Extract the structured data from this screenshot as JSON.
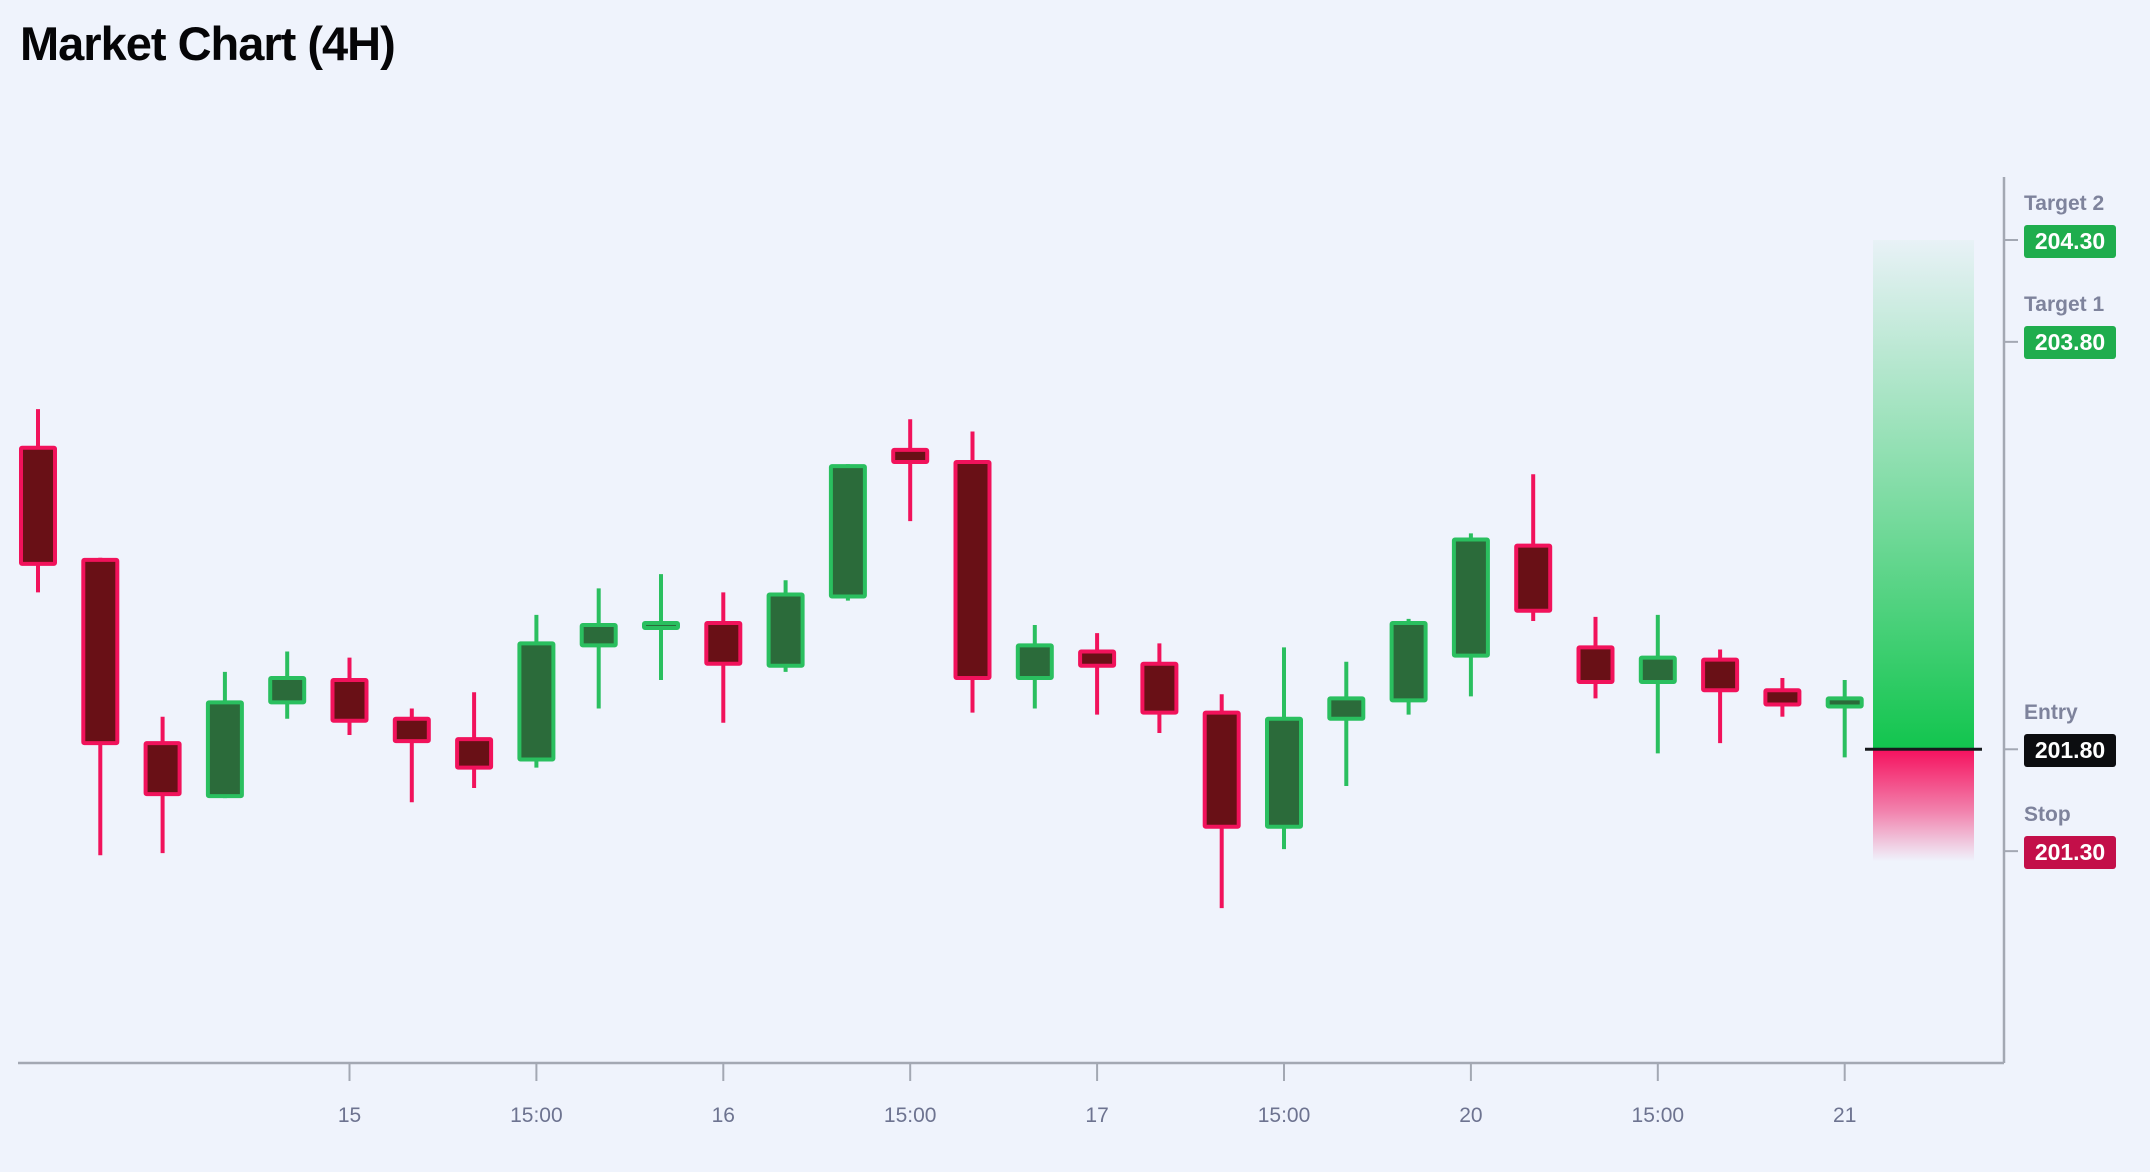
{
  "page": {
    "title": "Market Chart (4H)",
    "background": "#eff3fc"
  },
  "chart_data": {
    "type": "candlestick",
    "title": "Market Chart (4H)",
    "timeframe": "4H",
    "grid": false,
    "ylim": [
      200.26,
      204.84
    ],
    "x_tick_labels": [
      "15",
      "15:00",
      "16",
      "15:00",
      "17",
      "15:00",
      "20",
      "15:00",
      "21"
    ],
    "x_tick_candle_indexes": [
      5,
      8,
      11,
      14,
      17,
      20,
      23,
      26,
      29
    ],
    "candles_ohlc": [
      [
        203.28,
        203.47,
        202.57,
        202.71
      ],
      [
        202.73,
        202.74,
        201.28,
        201.83
      ],
      [
        201.83,
        201.96,
        201.29,
        201.58
      ],
      [
        201.57,
        202.18,
        201.56,
        202.03
      ],
      [
        202.03,
        202.28,
        201.95,
        202.15
      ],
      [
        202.14,
        202.25,
        201.87,
        201.94
      ],
      [
        201.95,
        202.0,
        201.54,
        201.84
      ],
      [
        201.85,
        202.08,
        201.61,
        201.71
      ],
      [
        201.75,
        202.46,
        201.71,
        202.32
      ],
      [
        202.31,
        202.59,
        202.0,
        202.41
      ],
      [
        202.4,
        202.66,
        202.14,
        202.42
      ],
      [
        202.42,
        202.57,
        201.93,
        202.22
      ],
      [
        202.21,
        202.63,
        202.18,
        202.56
      ],
      [
        202.55,
        203.2,
        202.53,
        203.19
      ],
      [
        203.27,
        203.42,
        202.92,
        203.21
      ],
      [
        203.21,
        203.36,
        201.98,
        202.15
      ],
      [
        202.15,
        202.41,
        202.0,
        202.31
      ],
      [
        202.28,
        202.37,
        201.97,
        202.21
      ],
      [
        202.22,
        202.32,
        201.88,
        201.98
      ],
      [
        201.98,
        202.07,
        201.02,
        201.42
      ],
      [
        201.42,
        202.3,
        201.31,
        201.95
      ],
      [
        201.95,
        202.23,
        201.62,
        202.05
      ],
      [
        202.04,
        202.44,
        201.97,
        202.42
      ],
      [
        202.26,
        202.86,
        202.06,
        202.83
      ],
      [
        202.8,
        203.15,
        202.43,
        202.48
      ],
      [
        202.3,
        202.45,
        202.05,
        202.13
      ],
      [
        202.13,
        202.46,
        201.78,
        202.25
      ],
      [
        202.24,
        202.29,
        201.83,
        202.09
      ],
      [
        202.09,
        202.15,
        201.96,
        202.02
      ],
      [
        202.01,
        202.14,
        201.76,
        202.05
      ]
    ],
    "levels": [
      {
        "id": "target2",
        "label": "Target 2",
        "price": 204.3,
        "price_text": "204.30",
        "badge_color": "#1fad4d"
      },
      {
        "id": "target1",
        "label": "Target 1",
        "price": 203.8,
        "price_text": "203.80",
        "badge_color": "#1fad4d"
      },
      {
        "id": "entry",
        "label": "Entry",
        "price": 201.8,
        "price_text": "201.80",
        "badge_color": "#0c0d10"
      },
      {
        "id": "stop",
        "label": "Stop",
        "price": 201.3,
        "price_text": "201.30",
        "badge_color": "#c30f49"
      }
    ],
    "entry_line": {
      "price": 201.8,
      "color": "#17191d"
    },
    "zones": [
      {
        "id": "profit-zone",
        "top_price": 204.3,
        "bottom_price": 201.8,
        "color_rgb": "18,197,78",
        "fade": "to-top"
      },
      {
        "id": "loss-zone",
        "top_price": 201.8,
        "bottom_price": 201.25,
        "color_rgb": "245,17,94",
        "fade": "to-bottom"
      }
    ],
    "style": {
      "bull_border": "#2abf5f",
      "bull_fill": "#2b6b3a",
      "bear_border": "#f1125b",
      "bear_fill": "#691016",
      "axis_color": "#a3a8b3",
      "tick_label_color": "#6d7390",
      "level_label_color": "#7e839c"
    }
  }
}
